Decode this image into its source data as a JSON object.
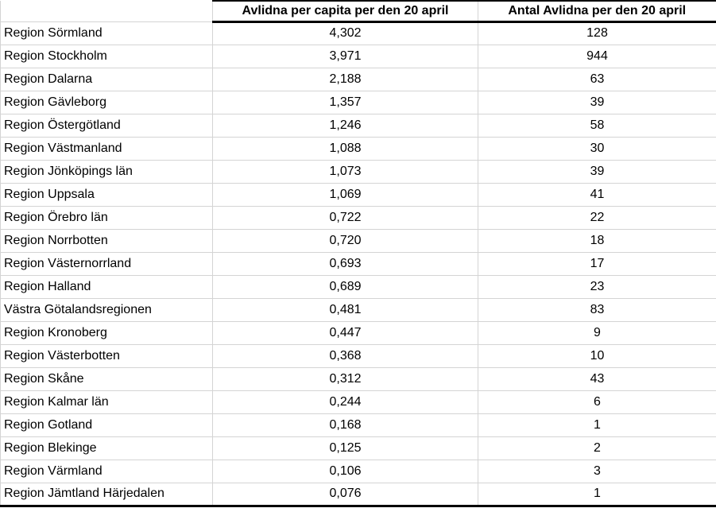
{
  "table": {
    "column_headers": {
      "region": "",
      "per_capita": "Avlidna per capita per den 20 april",
      "antal": "Antal Avlidna per den 20 april"
    },
    "rows": [
      {
        "region": "Region Sörmland",
        "per_capita": "4,302",
        "antal": "128"
      },
      {
        "region": "Region Stockholm",
        "per_capita": "3,971",
        "antal": "944"
      },
      {
        "region": "Region Dalarna",
        "per_capita": "2,188",
        "antal": "63"
      },
      {
        "region": "Region Gävleborg",
        "per_capita": "1,357",
        "antal": "39"
      },
      {
        "region": "Region Östergötland",
        "per_capita": "1,246",
        "antal": "58"
      },
      {
        "region": "Region Västmanland",
        "per_capita": "1,088",
        "antal": "30"
      },
      {
        "region": "Region Jönköpings län",
        "per_capita": "1,073",
        "antal": "39"
      },
      {
        "region": "Region Uppsala",
        "per_capita": "1,069",
        "antal": "41"
      },
      {
        "region": "Region Örebro län",
        "per_capita": "0,722",
        "antal": "22"
      },
      {
        "region": "Region Norrbotten",
        "per_capita": "0,720",
        "antal": "18"
      },
      {
        "region": "Region Västernorrland",
        "per_capita": "0,693",
        "antal": "17"
      },
      {
        "region": "Region Halland",
        "per_capita": "0,689",
        "antal": "23"
      },
      {
        "region": "Västra Götalandsregionen",
        "per_capita": "0,481",
        "antal": "83"
      },
      {
        "region": "Region Kronoberg",
        "per_capita": "0,447",
        "antal": "9"
      },
      {
        "region": "Region Västerbotten",
        "per_capita": "0,368",
        "antal": "10"
      },
      {
        "region": "Region Skåne",
        "per_capita": "0,312",
        "antal": "43"
      },
      {
        "region": "Region Kalmar län",
        "per_capita": "0,244",
        "antal": "6"
      },
      {
        "region": "Region Gotland",
        "per_capita": "0,168",
        "antal": "1"
      },
      {
        "region": "Region Blekinge",
        "per_capita": "0,125",
        "antal": "2"
      },
      {
        "region": "Region Värmland",
        "per_capita": "0,106",
        "antal": "3"
      },
      {
        "region": "Region Jämtland Härjedalen",
        "per_capita": "0,076",
        "antal": "1"
      }
    ],
    "colors": {
      "gridline": "#d4d4d4",
      "header_border": "#000000",
      "text": "#000000",
      "background": "#ffffff"
    }
  }
}
